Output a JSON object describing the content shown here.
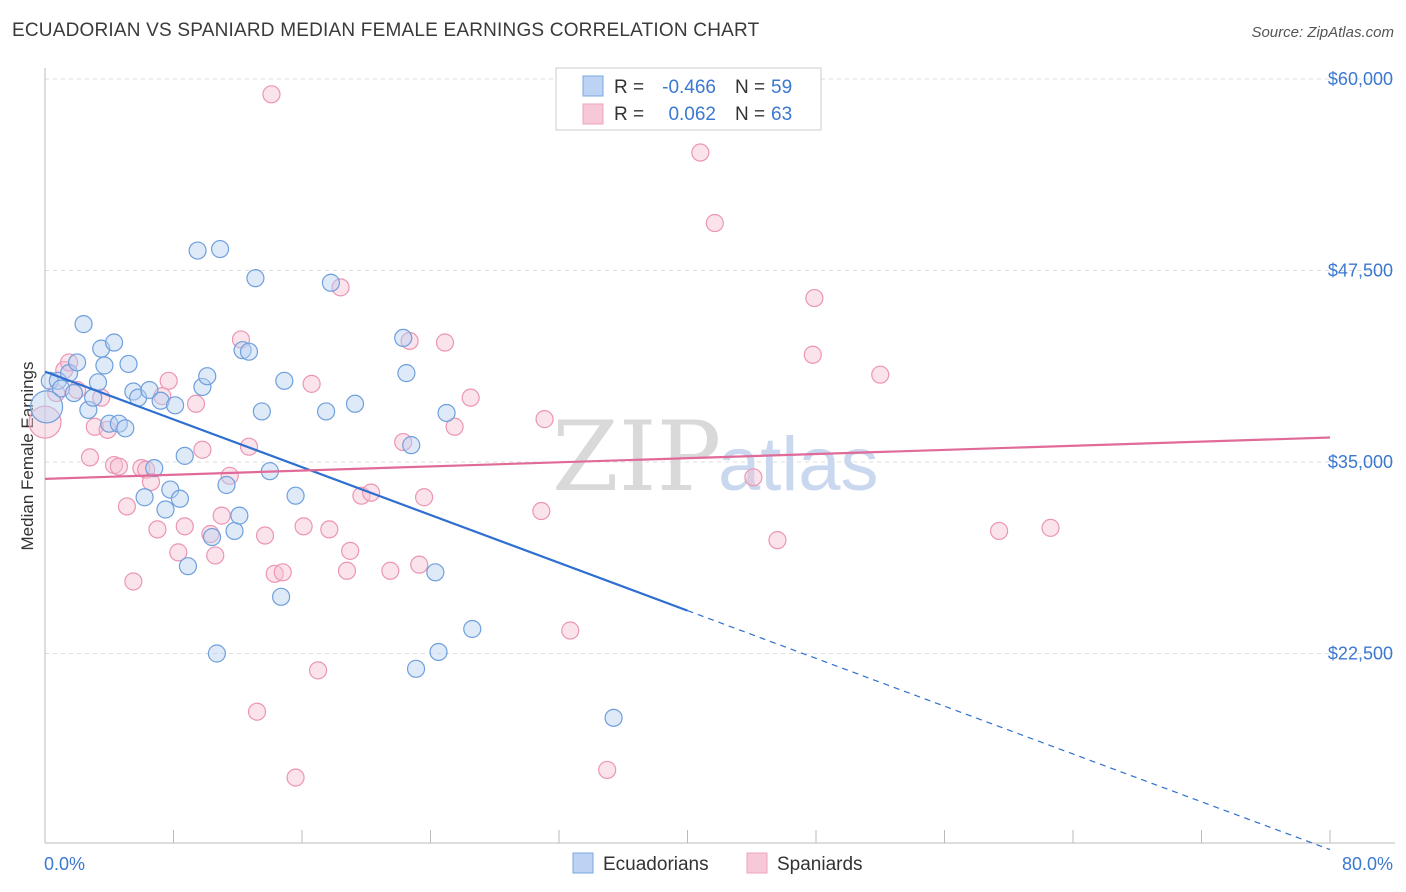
{
  "title": "ECUADORIAN VS SPANIARD MEDIAN FEMALE EARNINGS CORRELATION CHART",
  "source": "Source: ZipAtlas.com",
  "watermark": {
    "zip": "ZIP",
    "atlas": "atlas"
  },
  "chart_data": {
    "type": "scatter",
    "title": "ECUADORIAN VS SPANIARD MEDIAN FEMALE EARNINGS CORRELATION CHART",
    "xlabel": "",
    "ylabel": "Median Female Earnings",
    "xlim": [
      0,
      80
    ],
    "ylim": [
      12000,
      62000
    ],
    "x_tick_labels": {
      "min": "0.0%",
      "max": "80.0%"
    },
    "y_ticks": [
      {
        "value": 22500,
        "label": "$22,500"
      },
      {
        "value": 35000,
        "label": "$35,000"
      },
      {
        "value": 47500,
        "label": "$47,500"
      },
      {
        "value": 60000,
        "label": "$60,000"
      }
    ],
    "series": [
      {
        "name": "Ecuadorians",
        "color": "#7ba7e0",
        "line_color": "#2f6fd0",
        "R": "-0.466",
        "N": "59",
        "trend": {
          "x0": 0,
          "y0": 40900,
          "x1": 40,
          "y1": 25300,
          "x_dash_end": 80
        },
        "points": [
          [
            0.3,
            40300
          ],
          [
            0.8,
            40300
          ],
          [
            1.0,
            39800
          ],
          [
            1.5,
            40800
          ],
          [
            1.8,
            39500
          ],
          [
            2.0,
            41500
          ],
          [
            2.4,
            44000
          ],
          [
            2.7,
            38400
          ],
          [
            3.0,
            39200
          ],
          [
            3.3,
            40200
          ],
          [
            3.5,
            42400
          ],
          [
            3.7,
            41300
          ],
          [
            4.0,
            37500
          ],
          [
            4.3,
            42800
          ],
          [
            4.6,
            37500
          ],
          [
            5.0,
            37200
          ],
          [
            5.2,
            41400
          ],
          [
            5.5,
            39600
          ],
          [
            5.8,
            39200
          ],
          [
            6.2,
            32700
          ],
          [
            6.5,
            39700
          ],
          [
            6.8,
            34600
          ],
          [
            7.2,
            39000
          ],
          [
            7.5,
            31900
          ],
          [
            7.8,
            33200
          ],
          [
            8.1,
            38700
          ],
          [
            8.4,
            32600
          ],
          [
            8.7,
            35400
          ],
          [
            8.9,
            28200
          ],
          [
            9.5,
            48800
          ],
          [
            9.8,
            39900
          ],
          [
            10.1,
            40600
          ],
          [
            10.4,
            30100
          ],
          [
            10.7,
            22500
          ],
          [
            10.9,
            48900
          ],
          [
            11.3,
            33500
          ],
          [
            11.8,
            30500
          ],
          [
            12.1,
            31500
          ],
          [
            12.3,
            42300
          ],
          [
            12.7,
            42200
          ],
          [
            13.1,
            47000
          ],
          [
            13.5,
            38300
          ],
          [
            14.0,
            34400
          ],
          [
            14.7,
            26200
          ],
          [
            14.9,
            40300
          ],
          [
            15.6,
            32800
          ],
          [
            17.5,
            38300
          ],
          [
            17.8,
            46700
          ],
          [
            19.3,
            38800
          ],
          [
            22.3,
            43100
          ],
          [
            22.5,
            40800
          ],
          [
            22.8,
            36100
          ],
          [
            23.1,
            21500
          ],
          [
            24.3,
            27800
          ],
          [
            24.5,
            22600
          ],
          [
            25.0,
            38200
          ],
          [
            26.6,
            24100
          ],
          [
            35.4,
            18300
          ],
          [
            0.1,
            38600
          ]
        ]
      },
      {
        "name": "Spaniards",
        "color": "#f0a3bd",
        "line_color": "#e06b98",
        "R": "0.062",
        "N": "63",
        "trend": {
          "x0": 0,
          "y0": 33900,
          "x1": 80,
          "y1": 36600
        },
        "points": [
          [
            0.0,
            37600
          ],
          [
            0.7,
            39500
          ],
          [
            1.2,
            41000
          ],
          [
            1.5,
            41500
          ],
          [
            2.0,
            39700
          ],
          [
            2.8,
            35300
          ],
          [
            3.1,
            37300
          ],
          [
            3.5,
            39200
          ],
          [
            3.9,
            37100
          ],
          [
            4.3,
            34800
          ],
          [
            4.6,
            34700
          ],
          [
            5.1,
            32100
          ],
          [
            5.5,
            27200
          ],
          [
            6.0,
            34600
          ],
          [
            6.3,
            34500
          ],
          [
            6.6,
            33700
          ],
          [
            7.0,
            30600
          ],
          [
            7.3,
            39300
          ],
          [
            7.7,
            40300
          ],
          [
            8.3,
            29100
          ],
          [
            8.7,
            30800
          ],
          [
            9.4,
            38800
          ],
          [
            9.8,
            35800
          ],
          [
            10.3,
            30300
          ],
          [
            10.6,
            28900
          ],
          [
            11.0,
            31500
          ],
          [
            11.5,
            34100
          ],
          [
            12.2,
            43000
          ],
          [
            12.7,
            36000
          ],
          [
            13.2,
            18700
          ],
          [
            13.7,
            30200
          ],
          [
            14.3,
            27700
          ],
          [
            14.8,
            27800
          ],
          [
            15.6,
            14400
          ],
          [
            16.1,
            30800
          ],
          [
            16.6,
            40100
          ],
          [
            17.0,
            21400
          ],
          [
            17.7,
            30600
          ],
          [
            18.4,
            46400
          ],
          [
            18.8,
            27900
          ],
          [
            19.0,
            29200
          ],
          [
            19.7,
            32800
          ],
          [
            20.3,
            33000
          ],
          [
            21.5,
            27900
          ],
          [
            22.3,
            36300
          ],
          [
            22.7,
            42900
          ],
          [
            23.3,
            28300
          ],
          [
            23.6,
            32700
          ],
          [
            24.9,
            42800
          ],
          [
            25.5,
            37300
          ],
          [
            26.5,
            39200
          ],
          [
            30.9,
            31800
          ],
          [
            31.1,
            37800
          ],
          [
            32.7,
            24000
          ],
          [
            35.0,
            14900
          ],
          [
            40.8,
            55200
          ],
          [
            41.7,
            50600
          ],
          [
            44.1,
            34000
          ],
          [
            45.6,
            29900
          ],
          [
            47.8,
            42000
          ],
          [
            47.9,
            45700
          ],
          [
            52.0,
            40700
          ],
          [
            59.4,
            30500
          ]
        ]
      }
    ],
    "extra_points": {
      "Spaniards": [
        [
          14.1,
          59000
        ],
        [
          62.6,
          30700
        ]
      ]
    }
  }
}
